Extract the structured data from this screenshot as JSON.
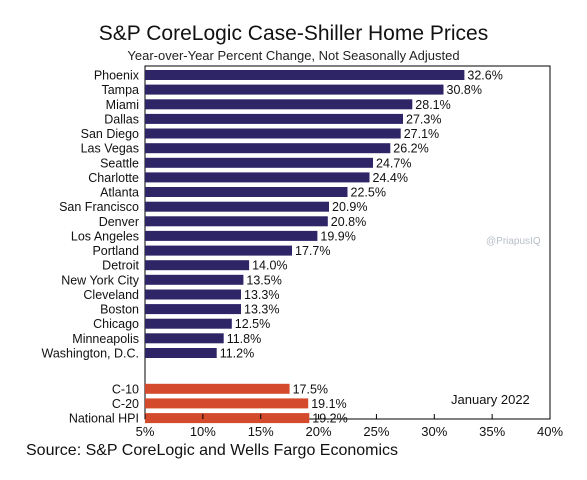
{
  "chart_data": {
    "type": "bar",
    "orientation": "horizontal",
    "title": "S&P CoreLogic Case-Shiller Home Prices",
    "subtitle": "Year-over-Year Percent Change, Not Seasonally Adjusted",
    "source": "Source: S&P CoreLogic and Wells Fargo Economics",
    "annotation": "January 2022",
    "watermark": "@PriapusIQ",
    "xlim": [
      5,
      40
    ],
    "xticks": [
      "5%",
      "10%",
      "15%",
      "20%",
      "25%",
      "30%",
      "35%",
      "40%"
    ],
    "grid": false,
    "series": [
      {
        "color": "#2e2567",
        "categories": [
          "Phoenix",
          "Tampa",
          "Miami",
          "Dallas",
          "San Diego",
          "Las Vegas",
          "Seattle",
          "Charlotte",
          "Atlanta",
          "San Francisco",
          "Denver",
          "Los Angeles",
          "Portland",
          "Detroit",
          "New York City",
          "Cleveland",
          "Boston",
          "Chicago",
          "Minneapolis",
          "Washington, D.C."
        ],
        "values": [
          32.6,
          30.8,
          28.1,
          27.3,
          27.1,
          26.2,
          24.7,
          24.4,
          22.5,
          20.9,
          20.8,
          19.9,
          17.7,
          14.0,
          13.5,
          13.3,
          13.3,
          12.5,
          11.8,
          11.2
        ],
        "labels": [
          "32.6%",
          "30.8%",
          "28.1%",
          "27.3%",
          "27.1%",
          "26.2%",
          "24.7%",
          "24.4%",
          "22.5%",
          "20.9%",
          "20.8%",
          "19.9%",
          "17.7%",
          "14.0%",
          "13.5%",
          "13.3%",
          "13.3%",
          "12.5%",
          "11.8%",
          "11.2%"
        ]
      },
      {
        "color": "#d44a2c",
        "categories": [
          "C-10",
          "C-20",
          "National HPI"
        ],
        "values": [
          17.5,
          19.1,
          19.2
        ],
        "labels": [
          "17.5%",
          "19.1%",
          "19.2%"
        ]
      }
    ]
  }
}
